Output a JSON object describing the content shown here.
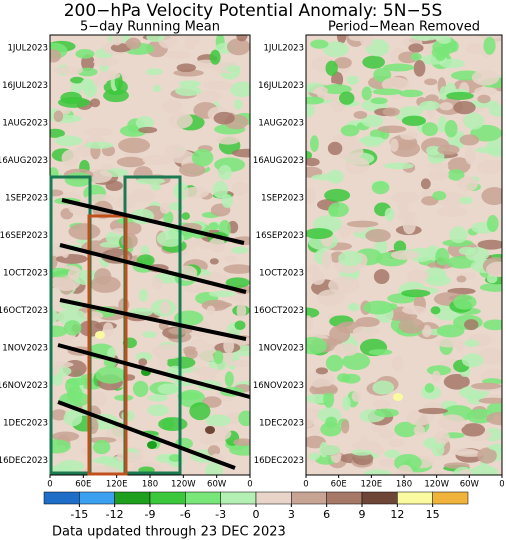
{
  "chart_data": {
    "type": "heatmap",
    "title": "200−hPa Velocity Potential Anomaly: 5N−5S",
    "panels": [
      {
        "subtitle": "5−day Running Mean"
      },
      {
        "subtitle": "Period−Mean Removed"
      }
    ],
    "y_labels": [
      "1JUL2023",
      "16JUL2023",
      "1AUG2023",
      "16AUG2023",
      "1SEP2023",
      "16SEP2023",
      "1OCT2023",
      "16OCT2023",
      "1NOV2023",
      "16NOV2023",
      "1DEC2023",
      "16DEC2023"
    ],
    "xlim": [
      0,
      360
    ],
    "xticks": [
      0,
      {
        "value": 60,
        "label": "60E"
      },
      {
        "value": 120,
        "label": "120E"
      },
      180,
      {
        "value": 240,
        "label": "120W"
      },
      {
        "value": 300,
        "label": "60W"
      },
      {
        "value": 360,
        "label": "0"
      }
    ],
    "colorbar": {
      "ticks": [
        -15,
        -12,
        -9,
        -6,
        -3,
        0,
        3,
        6,
        9,
        12,
        15
      ],
      "colors": [
        "#1e6ec8",
        "#3ca0f0",
        "#1ea01e",
        "#3cc83c",
        "#78e678",
        "#b4f0b4",
        "#e8d4c8",
        "#c8a494",
        "#a57868",
        "#6e4637",
        "#fafaa0",
        "#f0b43c"
      ]
    },
    "footer": "Data updated through 23 DEC 2023"
  }
}
